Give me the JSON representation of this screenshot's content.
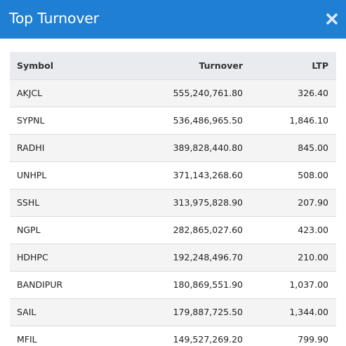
{
  "header": {
    "title": "Top Turnover",
    "close_icon": "close-icon",
    "background_color": "#1f80d3"
  },
  "table": {
    "columns": [
      "Symbol",
      "Turnover",
      "LTP"
    ],
    "rows": [
      {
        "symbol": "AKJCL",
        "turnover": "555,240,761.80",
        "ltp": "326.40"
      },
      {
        "symbol": "SYPNL",
        "turnover": "536,486,965.50",
        "ltp": "1,846.10"
      },
      {
        "symbol": "RADHI",
        "turnover": "389,828,440.80",
        "ltp": "845.00"
      },
      {
        "symbol": "UNHPL",
        "turnover": "371,143,268.60",
        "ltp": "508.00"
      },
      {
        "symbol": "SSHL",
        "turnover": "313,975,828.90",
        "ltp": "207.90"
      },
      {
        "symbol": "NGPL",
        "turnover": "282,865,027.60",
        "ltp": "423.00"
      },
      {
        "symbol": "HDHPC",
        "turnover": "192,248,496.70",
        "ltp": "210.00"
      },
      {
        "symbol": "BANDIPUR",
        "turnover": "180,869,551.90",
        "ltp": "1,037.00"
      },
      {
        "symbol": "SAIL",
        "turnover": "179,887,725.50",
        "ltp": "1,344.00"
      },
      {
        "symbol": "MFIL",
        "turnover": "149,527,269.20",
        "ltp": "799.90"
      }
    ]
  }
}
